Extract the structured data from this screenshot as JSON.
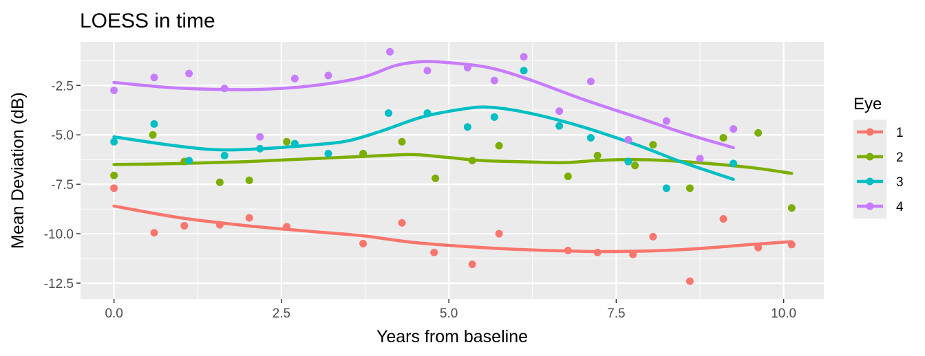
{
  "chart_data": {
    "type": "scatter",
    "title": "LOESS in time",
    "xlabel": "Years from baseline",
    "ylabel": "Mean Deviation (dB)",
    "xlim": [
      -0.5,
      10.6
    ],
    "ylim": [
      -13.3,
      -0.3
    ],
    "x_ticks": [
      0.0,
      2.5,
      5.0,
      7.5,
      10.0
    ],
    "x_tick_labels": [
      "0.0",
      "2.5",
      "5.0",
      "7.5",
      "10.0"
    ],
    "y_ticks": [
      -2.5,
      -5.0,
      -7.5,
      -10.0,
      -12.5
    ],
    "y_tick_labels": [
      "-2.5",
      "-5.0",
      "-7.5",
      "-10.0",
      "-12.5"
    ],
    "grid": true,
    "legend": {
      "title": "Eye",
      "position": "right"
    },
    "series": [
      {
        "name": "1",
        "color": "#F8766D",
        "points": [
          [
            0.0,
            -7.7
          ],
          [
            0.6,
            -9.95
          ],
          [
            1.05,
            -9.6
          ],
          [
            1.58,
            -9.55
          ],
          [
            2.02,
            -9.2
          ],
          [
            2.58,
            -9.65
          ],
          [
            3.72,
            -10.5
          ],
          [
            4.3,
            -9.45
          ],
          [
            4.78,
            -10.95
          ],
          [
            5.35,
            -11.55
          ],
          [
            5.75,
            -10.0
          ],
          [
            6.78,
            -10.85
          ],
          [
            7.22,
            -10.95
          ],
          [
            7.75,
            -11.05
          ],
          [
            8.05,
            -10.15
          ],
          [
            8.6,
            -12.4
          ],
          [
            9.1,
            -9.25
          ],
          [
            9.62,
            -10.7
          ],
          [
            10.12,
            -10.55
          ]
        ],
        "loess": [
          [
            0.0,
            -8.6
          ],
          [
            1.0,
            -9.2
          ],
          [
            2.0,
            -9.6
          ],
          [
            3.0,
            -9.9
          ],
          [
            3.7,
            -10.1
          ],
          [
            4.5,
            -10.45
          ],
          [
            5.5,
            -10.7
          ],
          [
            6.5,
            -10.85
          ],
          [
            7.5,
            -10.9
          ],
          [
            8.5,
            -10.8
          ],
          [
            9.5,
            -10.55
          ],
          [
            10.12,
            -10.4
          ]
        ]
      },
      {
        "name": "2",
        "color": "#7CAE00",
        "points": [
          [
            0.0,
            -7.05
          ],
          [
            0.58,
            -5.0
          ],
          [
            1.05,
            -6.35
          ],
          [
            1.58,
            -7.4
          ],
          [
            2.02,
            -7.3
          ],
          [
            2.58,
            -5.35
          ],
          [
            3.72,
            -5.95
          ],
          [
            4.3,
            -5.35
          ],
          [
            4.8,
            -7.2
          ],
          [
            5.35,
            -6.3
          ],
          [
            5.75,
            -5.55
          ],
          [
            6.78,
            -7.1
          ],
          [
            7.22,
            -6.05
          ],
          [
            7.78,
            -6.55
          ],
          [
            8.05,
            -5.5
          ],
          [
            8.6,
            -7.7
          ],
          [
            9.1,
            -5.15
          ],
          [
            9.62,
            -4.9
          ],
          [
            10.12,
            -8.7
          ]
        ],
        "loess": [
          [
            0.0,
            -6.5
          ],
          [
            1.0,
            -6.45
          ],
          [
            2.0,
            -6.35
          ],
          [
            3.0,
            -6.2
          ],
          [
            4.0,
            -6.05
          ],
          [
            4.5,
            -6.0
          ],
          [
            5.0,
            -6.15
          ],
          [
            5.5,
            -6.3
          ],
          [
            6.0,
            -6.35
          ],
          [
            6.5,
            -6.4
          ],
          [
            6.8,
            -6.4
          ],
          [
            7.2,
            -6.3
          ],
          [
            7.8,
            -6.25
          ],
          [
            8.5,
            -6.35
          ],
          [
            9.5,
            -6.65
          ],
          [
            10.12,
            -6.95
          ]
        ]
      },
      {
        "name": "3",
        "color": "#00BFC4",
        "points": [
          [
            0.0,
            -5.35
          ],
          [
            0.6,
            -4.45
          ],
          [
            1.12,
            -6.3
          ],
          [
            1.65,
            -6.05
          ],
          [
            2.18,
            -5.7
          ],
          [
            2.7,
            -5.45
          ],
          [
            3.2,
            -5.95
          ],
          [
            4.1,
            -3.9
          ],
          [
            4.68,
            -3.9
          ],
          [
            5.28,
            -4.6
          ],
          [
            5.68,
            -4.1
          ],
          [
            6.12,
            -1.75
          ],
          [
            6.65,
            -4.55
          ],
          [
            7.12,
            -5.15
          ],
          [
            7.68,
            -6.35
          ],
          [
            8.25,
            -7.7
          ],
          [
            9.25,
            -6.45
          ]
        ],
        "loess": [
          [
            0.0,
            -5.1
          ],
          [
            0.8,
            -5.5
          ],
          [
            1.5,
            -5.75
          ],
          [
            2.2,
            -5.7
          ],
          [
            3.0,
            -5.5
          ],
          [
            3.5,
            -5.3
          ],
          [
            4.0,
            -4.8
          ],
          [
            4.6,
            -4.1
          ],
          [
            5.2,
            -3.7
          ],
          [
            5.6,
            -3.6
          ],
          [
            6.2,
            -3.9
          ],
          [
            7.0,
            -4.6
          ],
          [
            7.8,
            -5.5
          ],
          [
            8.5,
            -6.4
          ],
          [
            9.25,
            -7.25
          ]
        ]
      },
      {
        "name": "4",
        "color": "#C77CFF",
        "points": [
          [
            0.0,
            -2.75
          ],
          [
            0.6,
            -2.1
          ],
          [
            1.12,
            -1.9
          ],
          [
            1.65,
            -2.65
          ],
          [
            2.18,
            -5.1
          ],
          [
            2.7,
            -2.15
          ],
          [
            3.2,
            -2.0
          ],
          [
            4.12,
            -0.8
          ],
          [
            4.68,
            -1.75
          ],
          [
            5.28,
            -1.6
          ],
          [
            5.68,
            -2.25
          ],
          [
            6.12,
            -1.05
          ],
          [
            6.65,
            -3.8
          ],
          [
            7.12,
            -2.3
          ],
          [
            7.68,
            -5.25
          ],
          [
            8.25,
            -4.3
          ],
          [
            8.75,
            -6.2
          ],
          [
            9.25,
            -4.7
          ]
        ],
        "loess": [
          [
            0.0,
            -2.35
          ],
          [
            0.8,
            -2.6
          ],
          [
            1.5,
            -2.7
          ],
          [
            2.2,
            -2.7
          ],
          [
            3.0,
            -2.5
          ],
          [
            3.7,
            -2.1
          ],
          [
            4.2,
            -1.5
          ],
          [
            4.6,
            -1.3
          ],
          [
            5.0,
            -1.35
          ],
          [
            5.6,
            -1.6
          ],
          [
            6.2,
            -2.2
          ],
          [
            7.0,
            -3.2
          ],
          [
            7.8,
            -4.1
          ],
          [
            8.5,
            -4.9
          ],
          [
            9.25,
            -5.65
          ]
        ]
      }
    ]
  }
}
